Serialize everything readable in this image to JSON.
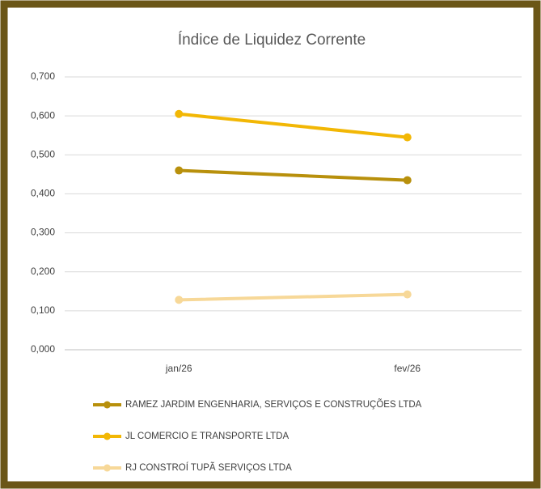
{
  "chart_data": {
    "type": "line",
    "title": "Índice de Liquidez Corrente",
    "categories": [
      "jan/26",
      "fev/26"
    ],
    "series": [
      {
        "name": "RAMEZ JARDIM ENGENHARIA, SERVIÇOS E CONSTRUÇÕES LTDA",
        "color": "#b8900c",
        "values": [
          0.46,
          0.435
        ]
      },
      {
        "name": "JL COMERCIO E TRANSPORTE LTDA",
        "color": "#f2b705",
        "values": [
          0.605,
          0.545
        ]
      },
      {
        "name": "RJ CONSTROÍ TUPÃ SERVIÇOS LTDA",
        "color": "#f7d898",
        "values": [
          0.128,
          0.142
        ]
      }
    ],
    "ylim": [
      0,
      0.7
    ],
    "yticks": [
      {
        "value": 0,
        "label": "0,000"
      },
      {
        "value": 0.1,
        "label": "0,100"
      },
      {
        "value": 0.2,
        "label": "0,200"
      },
      {
        "value": 0.3,
        "label": "0,300"
      },
      {
        "value": 0.4,
        "label": "0,400"
      },
      {
        "value": 0.5,
        "label": "0,500"
      },
      {
        "value": 0.6,
        "label": "0,600"
      },
      {
        "value": 0.7,
        "label": "0,700"
      }
    ],
    "grid": true,
    "legend": "bottom"
  }
}
